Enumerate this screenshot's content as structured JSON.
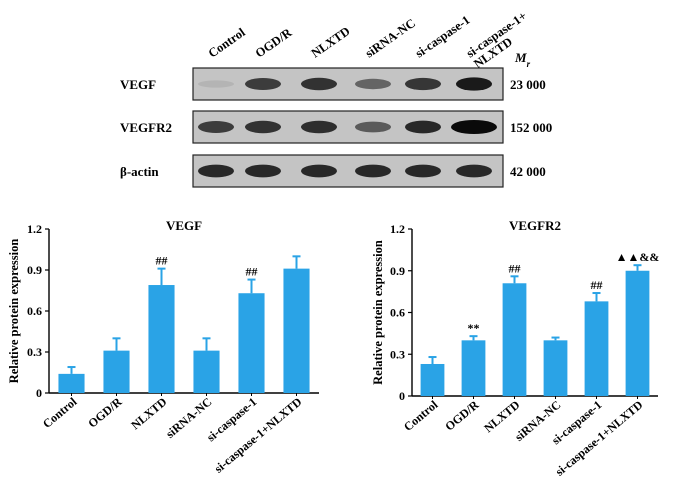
{
  "blot": {
    "columns": [
      "Control",
      "OGD/R",
      "NLXTD",
      "siRNA-NC",
      "si-caspase-1",
      "si-caspase-1+\nNLXTD"
    ],
    "mr_label": "M",
    "mr_subscript": "r",
    "rows": [
      {
        "label": "VEGF",
        "mw": "23 000",
        "intensity": [
          0.15,
          0.75,
          0.8,
          0.55,
          0.78,
          0.92
        ]
      },
      {
        "label": "VEGFR2",
        "mw": "152 000",
        "intensity": [
          0.75,
          0.8,
          0.82,
          0.6,
          0.85,
          1.0
        ]
      },
      {
        "label": "β-actin",
        "mw": "42 000",
        "intensity": [
          0.85,
          0.85,
          0.85,
          0.85,
          0.85,
          0.85
        ]
      }
    ]
  },
  "chart_data": [
    {
      "type": "bar",
      "title": "VEGF",
      "xlabel": "",
      "ylabel": "Relative protein expression",
      "ylim": [
        0,
        1.2
      ],
      "yticks": [
        "0",
        "0.3",
        "0.6",
        "0.9",
        "1.2"
      ],
      "categories": [
        "Control",
        "OGD/R",
        "NLXTD",
        "siRNA-NC",
        "si-caspase-1",
        "si-caspase-1+NLXTD"
      ],
      "values": [
        0.14,
        0.31,
        0.79,
        0.31,
        0.73,
        0.91
      ],
      "errors": [
        0.05,
        0.09,
        0.12,
        0.09,
        0.1,
        0.09
      ],
      "annotations": [
        "",
        "",
        "##",
        "",
        "##",
        ""
      ],
      "color": "#2aa3e6"
    },
    {
      "type": "bar",
      "title": "VEGFR2",
      "xlabel": "",
      "ylabel": "Relative protein expression",
      "ylim": [
        0,
        1.2
      ],
      "yticks": [
        "0",
        "0.3",
        "0.6",
        "0.9",
        "1.2"
      ],
      "categories": [
        "Control",
        "OGD/R",
        "NLXTD",
        "siRNA-NC",
        "si-caspase-1",
        "si-caspase-1+NLXTD"
      ],
      "values": [
        0.23,
        0.4,
        0.81,
        0.4,
        0.68,
        0.9
      ],
      "errors": [
        0.05,
        0.03,
        0.05,
        0.02,
        0.06,
        0.04
      ],
      "annotations": [
        "",
        "**",
        "##",
        "",
        "##",
        "▲▲&&"
      ],
      "color": "#2aa3e6"
    }
  ]
}
